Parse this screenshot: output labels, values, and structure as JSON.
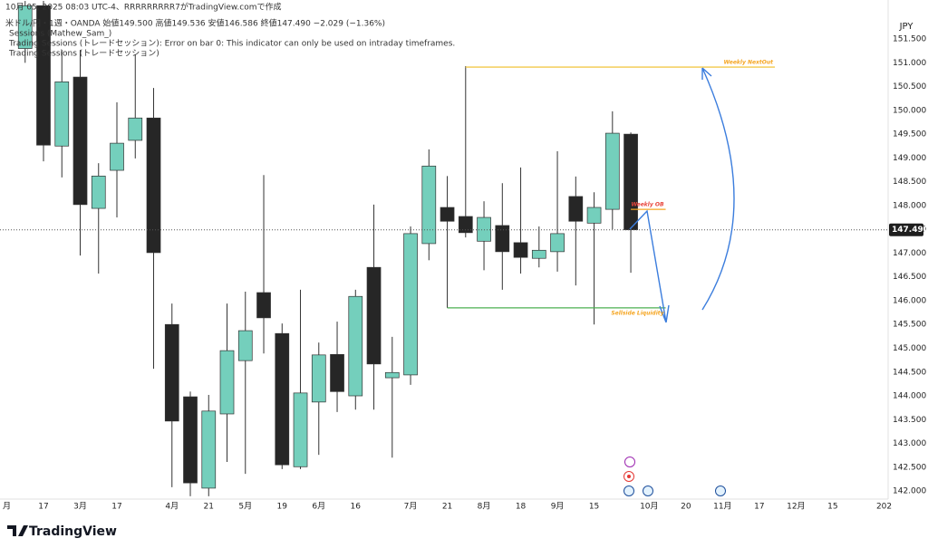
{
  "header": {
    "created": "10月 05, 2025 08:03 UTC-4、RRRRRRRRR7がTradingView.comで作成",
    "symbol_line": "米ドル/円・1週・OANDA  始値149.500  高値149.536  安値146.586  終値147.490  −2.029 (−1.36%)",
    "indicators": [
      "Sessions (Mathew_Sam_)",
      "Trading Sessions (トレードセッション): Error on bar 0: This indicator can only be used on intraday timeframes.",
      "Trading Sessions (トレードセッション)"
    ],
    "currency": "JPY"
  },
  "footer": {
    "logo": "TradingView"
  },
  "chart_data": {
    "type": "candlestick",
    "x": [
      1,
      2,
      3,
      4,
      5,
      6,
      7,
      8,
      9,
      10,
      11,
      12,
      13,
      14,
      15,
      16,
      17,
      18,
      19,
      20,
      21,
      22,
      23,
      24,
      25,
      26,
      27,
      28,
      29,
      30,
      31,
      32,
      33,
      34
    ],
    "series": {
      "open": [
        151.3,
        152.2,
        149.25,
        150.7,
        147.94,
        148.74,
        149.37,
        149.84,
        145.5,
        143.98,
        142.06,
        143.62,
        144.74,
        146.17,
        145.31,
        142.51,
        143.87,
        144.87,
        144.0,
        146.7,
        144.38,
        144.44,
        147.2,
        147.96,
        147.77,
        147.25,
        147.58,
        147.22,
        146.89,
        147.03,
        148.19,
        147.63,
        147.92,
        149.5
      ],
      "high": [
        152.3,
        152.3,
        151.27,
        151.27,
        148.89,
        150.17,
        151.18,
        150.47,
        145.94,
        144.09,
        144.02,
        145.94,
        146.19,
        148.64,
        145.52,
        146.23,
        145.12,
        145.56,
        146.23,
        148.02,
        145.24,
        147.56,
        149.18,
        148.62,
        150.93,
        148.09,
        148.47,
        148.8,
        147.56,
        149.14,
        148.61,
        148.28,
        149.98,
        149.536
      ],
      "low": [
        151.0,
        148.93,
        148.59,
        146.95,
        146.57,
        147.75,
        148.99,
        144.57,
        142.08,
        141.89,
        141.89,
        142.61,
        142.36,
        144.89,
        142.46,
        142.46,
        142.76,
        143.66,
        143.71,
        143.71,
        142.7,
        144.23,
        146.85,
        145.85,
        147.33,
        146.64,
        146.23,
        146.57,
        146.7,
        146.61,
        146.32,
        145.5,
        147.5,
        146.586
      ],
      "close": [
        152.2,
        149.27,
        150.6,
        148.02,
        148.62,
        149.31,
        149.84,
        147.01,
        143.47,
        142.17,
        143.68,
        144.95,
        145.37,
        145.64,
        142.55,
        144.06,
        144.86,
        144.09,
        146.09,
        144.67,
        144.49,
        147.41,
        148.83,
        147.67,
        147.43,
        147.75,
        147.03,
        146.91,
        147.06,
        147.41,
        147.67,
        147.96,
        149.52,
        147.49
      ]
    },
    "up_color": "#74cfbc",
    "down_color": "#262626",
    "xlim": [
      -0.37,
      48.02
    ],
    "ylim": [
      141.83,
      152.32
    ],
    "grid": false,
    "xticks": [
      {
        "value": 0,
        "label": "月"
      },
      {
        "value": 2,
        "label": "17"
      },
      {
        "value": 4,
        "label": "3月"
      },
      {
        "value": 6,
        "label": "17"
      },
      {
        "value": 9,
        "label": "4月"
      },
      {
        "value": 11,
        "label": "21"
      },
      {
        "value": 13,
        "label": "5月"
      },
      {
        "value": 15,
        "label": "19"
      },
      {
        "value": 17,
        "label": "6月"
      },
      {
        "value": 19,
        "label": "16"
      },
      {
        "value": 22,
        "label": "7月"
      },
      {
        "value": 24,
        "label": "21"
      },
      {
        "value": 26,
        "label": "8月"
      },
      {
        "value": 28,
        "label": "18"
      },
      {
        "value": 30,
        "label": "9月"
      },
      {
        "value": 32,
        "label": "15"
      },
      {
        "value": 35,
        "label": "10月"
      },
      {
        "value": 37,
        "label": "20"
      },
      {
        "value": 39,
        "label": "11月"
      },
      {
        "value": 41,
        "label": "17"
      },
      {
        "value": 43,
        "label": "12月"
      },
      {
        "value": 45,
        "label": "15"
      },
      {
        "value": 47.8,
        "label": "202"
      }
    ],
    "yticks": [
      {
        "value": 142,
        "label": "142.000"
      },
      {
        "value": 142.5,
        "label": "142.500"
      },
      {
        "value": 143,
        "label": "143.000"
      },
      {
        "value": 143.5,
        "label": "143.500"
      },
      {
        "value": 144,
        "label": "144.000"
      },
      {
        "value": 144.5,
        "label": "144.500"
      },
      {
        "value": 145,
        "label": "145.000"
      },
      {
        "value": 145.5,
        "label": "145.500"
      },
      {
        "value": 146,
        "label": "146.000"
      },
      {
        "value": 146.5,
        "label": "146.500"
      },
      {
        "value": 147,
        "label": "147.000"
      },
      {
        "value": 147.5,
        "label": "147.500"
      },
      {
        "value": 148,
        "label": "148.000"
      },
      {
        "value": 148.5,
        "label": "148.500"
      },
      {
        "value": 149,
        "label": "149.000"
      },
      {
        "value": 149.5,
        "label": "149.500"
      },
      {
        "value": 150,
        "label": "150.000"
      },
      {
        "value": 150.5,
        "label": "150.500"
      },
      {
        "value": 151,
        "label": "151.000"
      },
      {
        "value": 151.5,
        "label": "151.500"
      }
    ],
    "price_line": {
      "value": 147.49,
      "label": "147.490"
    },
    "levels": [
      {
        "label": "Weekly NextOut",
        "value": 150.91,
        "x_start": 25,
        "x_end": 41.85,
        "color": "#f2c94c",
        "text_color": "#f5a623"
      },
      {
        "label": "Weekly OB",
        "value": 147.92,
        "x_start": 34,
        "x_end": 35.9,
        "color": "#f5a623",
        "text_color": "#e8453c"
      },
      {
        "label": "Sellside Liquidity",
        "value": 145.85,
        "x_start": 24,
        "x_end": 35.9,
        "color": "#4caf50",
        "text_color": "#f5a623"
      }
    ]
  }
}
